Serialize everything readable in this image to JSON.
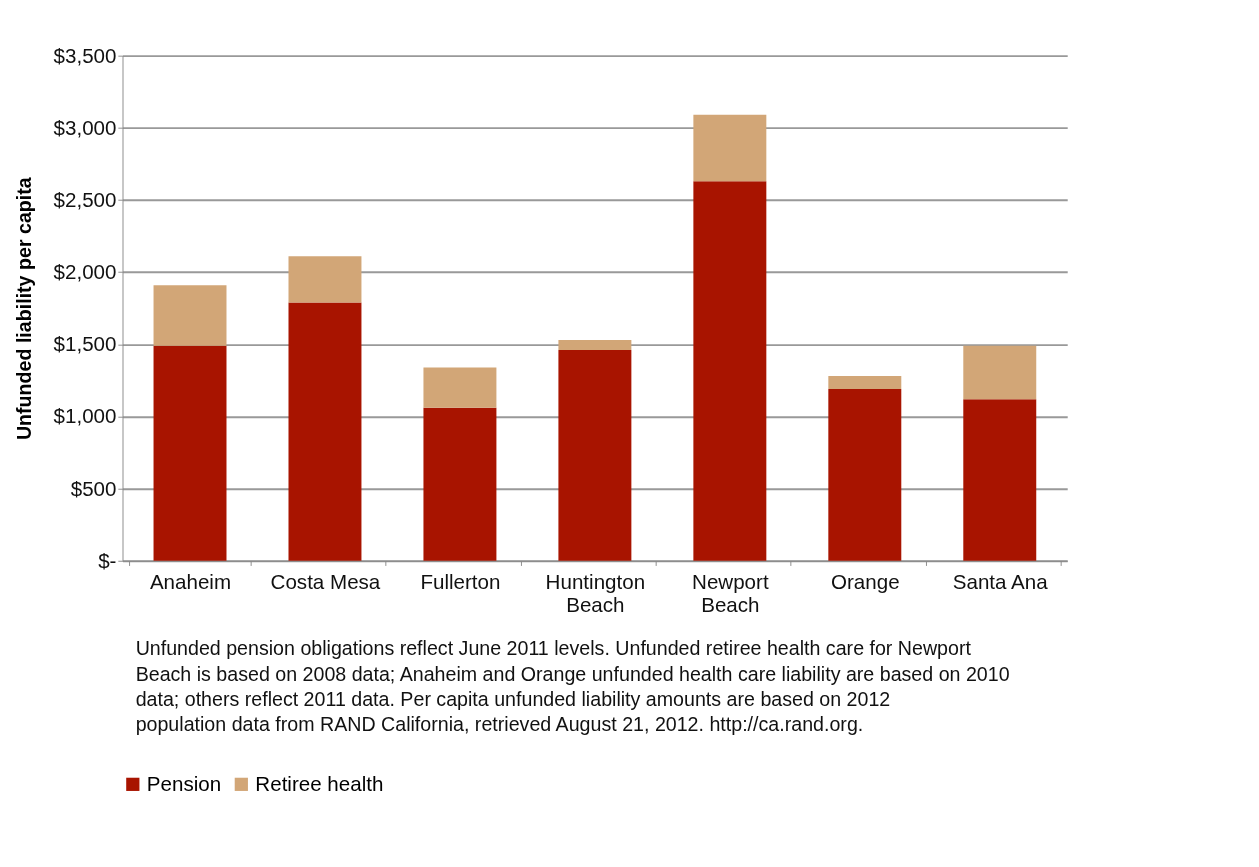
{
  "chart_data": {
    "type": "bar",
    "stacked": true,
    "ylabel": "Unfunded liability per capita",
    "categories": [
      "Anaheim",
      "Costa Mesa",
      "Fullerton",
      "Huntington Beach",
      "Newport Beach",
      "Orange",
      "Santa Ana"
    ],
    "series": [
      {
        "name": "Pension",
        "color": "#a81400",
        "values": [
          1490,
          1790,
          1060,
          1460,
          2630,
          1190,
          1120
        ]
      },
      {
        "name": "Retiree health",
        "color": "#d2a677",
        "values": [
          420,
          320,
          280,
          70,
          460,
          90,
          370
        ]
      }
    ],
    "ylim": [
      0,
      3500
    ],
    "yticks": [
      {
        "value": 0,
        "label": "$-"
      },
      {
        "value": 500,
        "label": "$500"
      },
      {
        "value": 1000,
        "label": "$1,000"
      },
      {
        "value": 1500,
        "label": "$1,500"
      },
      {
        "value": 2000,
        "label": "$2,000"
      },
      {
        "value": 2500,
        "label": "$2,500"
      },
      {
        "value": 3000,
        "label": "$3,000"
      },
      {
        "value": 3500,
        "label": "$3,500"
      }
    ],
    "grid": "y",
    "legend": "bottom",
    "annotations": [
      "Unfunded pension obligations reflect June 2011 levels.  Unfunded retiree health care for Newport Beach is based on 2008 data; Anaheim and Orange unfunded health care liability are based on 2010 data; others reflect 2011 data.  Per capita unfunded liability amounts are based on 2012 population data from RAND California, retrieved August 21, 2012. http://ca.rand.org."
    ]
  }
}
